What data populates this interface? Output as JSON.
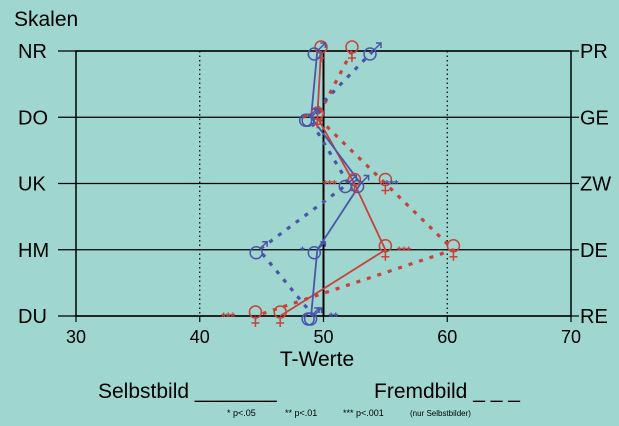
{
  "chart_data": {
    "type": "line",
    "orientation": "horizontal-profile",
    "ylabel": "Skalen",
    "xlabel": "T-Werte",
    "xlim": [
      30,
      70
    ],
    "xticks": [
      30,
      40,
      50,
      60,
      70
    ],
    "grid_x": [
      40,
      60
    ],
    "reference_x": 50,
    "scales_left": [
      "NR",
      "DO",
      "UK",
      "HM",
      "DU"
    ],
    "scales_right": [
      "PR",
      "GE",
      "ZW",
      "DE",
      "RE"
    ],
    "series": [
      {
        "name": "Selbstbild",
        "gender": "female",
        "style": "solid",
        "color": "#c8413a",
        "values": [
          49.8,
          49.5,
          52.5,
          55.0,
          46.5
        ]
      },
      {
        "name": "Fremdbild",
        "gender": "female",
        "style": "dashed",
        "color": "#c8413a",
        "values": [
          52.3,
          49.5,
          55.0,
          60.5,
          44.5
        ]
      },
      {
        "name": "Selbstbild",
        "gender": "male",
        "style": "solid",
        "color": "#4a55a8",
        "values": [
          49.5,
          49.0,
          53.0,
          49.5,
          49.0
        ]
      },
      {
        "name": "Fremdbild",
        "gender": "male",
        "style": "dashed",
        "color": "#4a55a8",
        "values": [
          54.0,
          48.8,
          52.0,
          44.8,
          49.2
        ]
      }
    ],
    "significance_marks": [
      {
        "scale": "DO",
        "x": 48.5,
        "text": "*",
        "color": "#c8413a"
      },
      {
        "scale": "UK",
        "x": 50.5,
        "text": "***",
        "color": "#c8413a"
      },
      {
        "scale": "UK",
        "x": 55.5,
        "text": "***",
        "color": "#4a55a8"
      },
      {
        "scale": "HM",
        "x": 56.5,
        "text": "***",
        "color": "#c8413a"
      },
      {
        "scale": "HM",
        "x": 48.3,
        "text": "*",
        "color": "#4a55a8"
      },
      {
        "scale": "DU",
        "x": 42.3,
        "text": "***",
        "color": "#c8413a"
      },
      {
        "scale": "DU",
        "x": 50.8,
        "text": "**",
        "color": "#4a55a8"
      }
    ]
  },
  "legend": {
    "self_label": "Selbstbild _______",
    "other_label": "Fremdbild _ _ _",
    "note_p05": "* p<.05",
    "note_p01": "** p<.01",
    "note_p001": "*** p<.001",
    "note_only_self": "(nur Selbstbilder)"
  }
}
